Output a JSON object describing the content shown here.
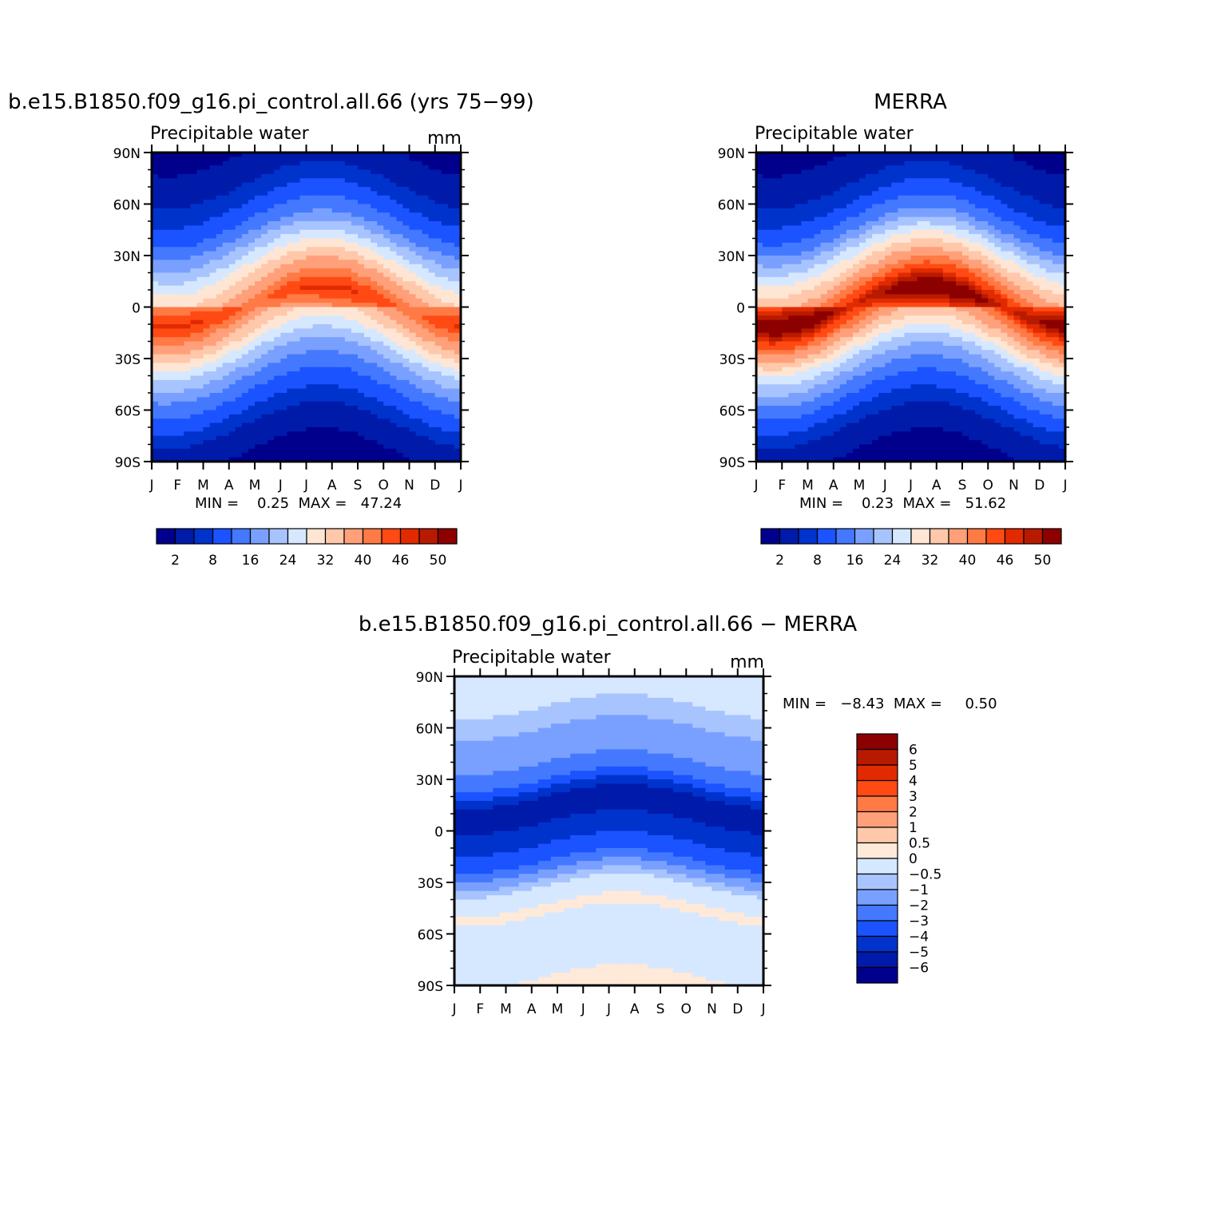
{
  "palette_abs": [
    "#00008C",
    "#001AAA",
    "#0033CC",
    "#1A53FF",
    "#4479FF",
    "#7AA0FF",
    "#A8C4FF",
    "#D6E8FF",
    "#FFE6D4",
    "#FFC8AA",
    "#FFA07A",
    "#FF7A44",
    "#FF4A14",
    "#E12A00",
    "#B81A00",
    "#8C0000"
  ],
  "palette_diff": [
    "#00008C",
    "#001AAA",
    "#0033CC",
    "#1A53FF",
    "#4479FF",
    "#7AA0FF",
    "#A8C4FF",
    "#D6E8FF",
    "#FFE9D9",
    "#FFC8AA",
    "#FFA07A",
    "#FF7A44",
    "#FF4A14",
    "#E12A00",
    "#B81A00",
    "#8C0000"
  ],
  "panels": [
    {
      "title": "b.e15.B1850.f09_g16.pi_control.all.66 (yrs 75−99)",
      "subtitle": "Precipitable water",
      "units": "mm",
      "minmax": "MIN =    0.25  MAX =   47.24",
      "colorbar_labels": [
        "2",
        "8",
        "16",
        "24",
        "32",
        "40",
        "46",
        "50"
      ]
    },
    {
      "title": "MERRA",
      "subtitle": "Precipitable water",
      "units": "",
      "minmax": "MIN =    0.23  MAX =   51.62",
      "colorbar_labels": [
        "2",
        "8",
        "16",
        "24",
        "32",
        "40",
        "46",
        "50"
      ]
    },
    {
      "title": "b.e15.B1850.f09_g16.pi_control.all.66 − MERRA",
      "subtitle": "Precipitable water",
      "units": "mm",
      "minmax": "MIN =   −8.43  MAX =     0.50",
      "colorbar_labels": [
        "6",
        "5",
        "4",
        "3",
        "2",
        "1",
        "0.5",
        "0",
        "−0.5",
        "−1",
        "−2",
        "−3",
        "−4",
        "−5",
        "−6"
      ]
    }
  ],
  "chart_data": [
    {
      "type": "heatmap",
      "title": "b.e15.B1850.f09_g16.pi_control.all.66 (yrs 75−99)",
      "subtitle": "Precipitable water",
      "units": "mm",
      "x": [
        "J",
        "F",
        "M",
        "A",
        "M",
        "J",
        "J",
        "A",
        "S",
        "O",
        "N",
        "D",
        "J"
      ],
      "y": [
        "90N",
        "60N",
        "30N",
        "0",
        "30S",
        "60S",
        "90S"
      ],
      "ylim": [
        -90,
        90
      ],
      "levels": [
        2,
        5,
        8,
        12,
        16,
        20,
        24,
        28,
        32,
        36,
        40,
        43,
        46,
        48,
        50
      ],
      "min": 0.25,
      "max": 47.24,
      "lat_profile": {
        "lat": [
          -90,
          -75,
          -60,
          -45,
          -30,
          -15,
          0,
          15,
          30,
          45,
          60,
          75,
          90
        ],
        "value": [
          1.5,
          3,
          8,
          14,
          22,
          33,
          42,
          34,
          24,
          14,
          8,
          4,
          2
        ]
      }
    },
    {
      "type": "heatmap",
      "title": "MERRA",
      "subtitle": "Precipitable water",
      "x": [
        "J",
        "F",
        "M",
        "A",
        "M",
        "J",
        "J",
        "A",
        "S",
        "O",
        "N",
        "D",
        "J"
      ],
      "y": [
        "90N",
        "60N",
        "30N",
        "0",
        "30S",
        "60S",
        "90S"
      ],
      "ylim": [
        -90,
        90
      ],
      "levels": [
        2,
        5,
        8,
        12,
        16,
        20,
        24,
        28,
        32,
        36,
        40,
        43,
        46,
        48,
        50
      ],
      "min": 0.23,
      "max": 51.62,
      "lat_profile": {
        "lat": [
          -90,
          -75,
          -60,
          -45,
          -30,
          -15,
          0,
          15,
          30,
          45,
          60,
          75,
          90
        ],
        "value": [
          1.5,
          3,
          8,
          15,
          24,
          37,
          48,
          38,
          27,
          15,
          8,
          4,
          2
        ]
      }
    },
    {
      "type": "heatmap",
      "title": "b.e15.B1850.f09_g16.pi_control.all.66 − MERRA",
      "subtitle": "Precipitable water",
      "units": "mm",
      "x": [
        "J",
        "F",
        "M",
        "A",
        "M",
        "J",
        "J",
        "A",
        "S",
        "O",
        "N",
        "D",
        "J"
      ],
      "y": [
        "90N",
        "60N",
        "30N",
        "0",
        "30S",
        "60S",
        "90S"
      ],
      "ylim": [
        -90,
        90
      ],
      "levels": [
        -6,
        -5,
        -4,
        -3,
        -2,
        -1,
        -0.5,
        0,
        0.5,
        1,
        2,
        3,
        4,
        5,
        6
      ],
      "min": -8.43,
      "max": 0.5,
      "lat_profile": {
        "lat": [
          -90,
          -75,
          -60,
          -45,
          -30,
          -15,
          0,
          15,
          30,
          45,
          60,
          75,
          90
        ],
        "value": [
          0.1,
          -0.2,
          -0.3,
          0.1,
          -0.6,
          -3.5,
          -4.5,
          -6,
          -3,
          -1.5,
          -1,
          -0.4,
          -0.2
        ]
      }
    }
  ]
}
